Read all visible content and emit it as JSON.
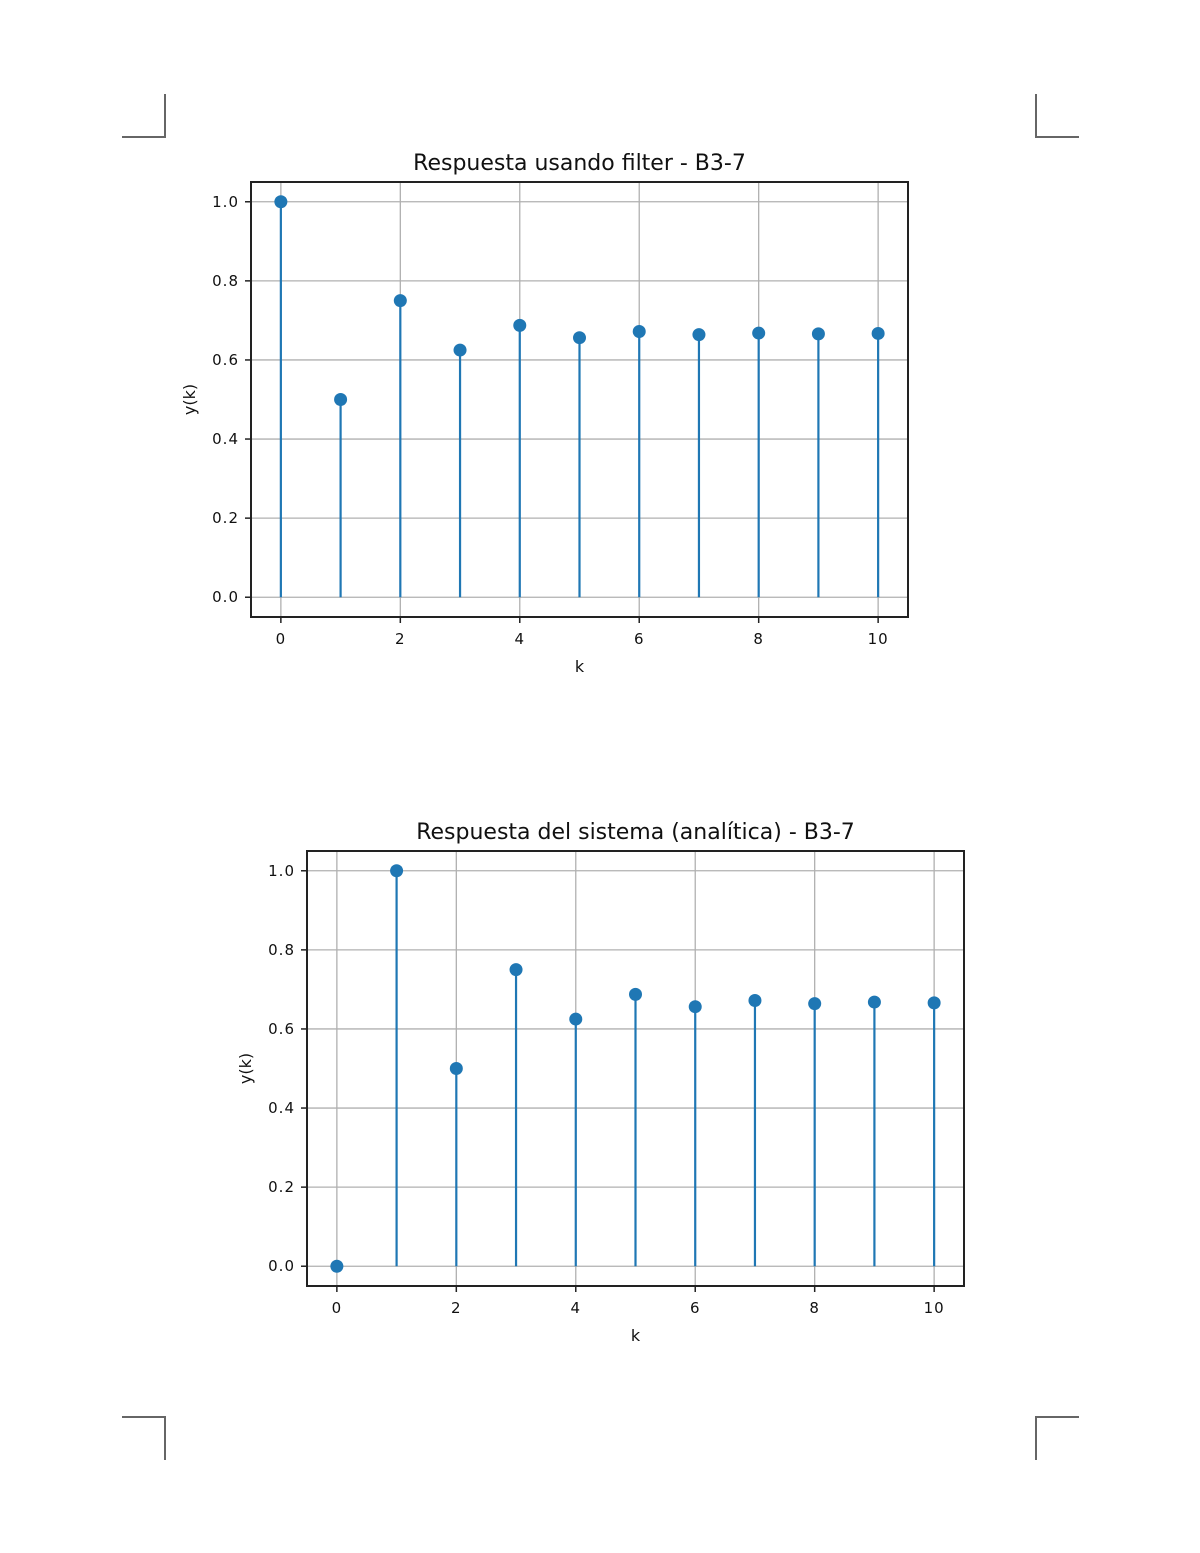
{
  "chart_data": [
    {
      "type": "stem",
      "title": "Respuesta usando filter - B3-7",
      "xlabel": "k",
      "ylabel": "y(k)",
      "x": [
        0,
        1,
        2,
        3,
        4,
        5,
        6,
        7,
        8,
        9,
        10
      ],
      "y": [
        1.0,
        0.5,
        0.75,
        0.625,
        0.6875,
        0.65625,
        0.671875,
        0.6640625,
        0.66796875,
        0.666015625,
        0.6669921875
      ],
      "xticks": [
        "0",
        "2",
        "4",
        "6",
        "8",
        "10"
      ],
      "yticks": [
        "0.0",
        "0.2",
        "0.4",
        "0.6",
        "0.8",
        "1.0"
      ],
      "xlim": [
        -0.5,
        10.5
      ],
      "ylim": [
        -0.05,
        1.05
      ],
      "grid": true,
      "color": "#1f77b4"
    },
    {
      "type": "stem",
      "title": "Respuesta del sistema (analítica) - B3-7",
      "xlabel": "k",
      "ylabel": "y(k)",
      "x": [
        0,
        1,
        2,
        3,
        4,
        5,
        6,
        7,
        8,
        9,
        10
      ],
      "y": [
        0.0,
        1.0,
        0.5,
        0.75,
        0.625,
        0.6875,
        0.65625,
        0.671875,
        0.6640625,
        0.66796875,
        0.666015625
      ],
      "xticks": [
        "0",
        "2",
        "4",
        "6",
        "8",
        "10"
      ],
      "yticks": [
        "0.0",
        "0.2",
        "0.4",
        "0.6",
        "0.8",
        "1.0"
      ],
      "xlim": [
        -0.5,
        10.5
      ],
      "ylim": [
        -0.05,
        1.05
      ],
      "grid": true,
      "color": "#1f77b4"
    }
  ]
}
